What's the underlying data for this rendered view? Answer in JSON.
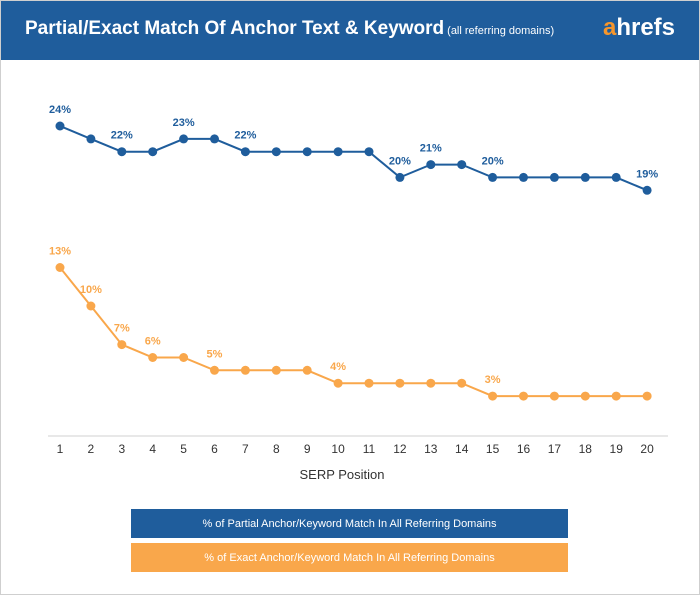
{
  "header": {
    "title": "Partial/Exact Match Of Anchor Text & Keyword",
    "subtitle": "(all referring domains)",
    "brand_a": "a",
    "brand_rest": "hrefs"
  },
  "colors": {
    "header_bg": "#1f5d9c",
    "partial": "#1f5d9c",
    "exact": "#f9a74b",
    "brand_accent": "#f7962b"
  },
  "chart_data": {
    "type": "line",
    "xlabel": "SERP Position",
    "ylabel": "",
    "grid": false,
    "legend_placement": "bottom",
    "x": [
      1,
      2,
      3,
      4,
      5,
      6,
      7,
      8,
      9,
      10,
      11,
      12,
      13,
      14,
      15,
      16,
      17,
      18,
      19,
      20
    ],
    "series": [
      {
        "name": "% of Partial Anchor/Keyword Match In All Referring Domains",
        "values": [
          24,
          23,
          22,
          22,
          23,
          23,
          22,
          22,
          22,
          22,
          22,
          20,
          21,
          21,
          20,
          20,
          20,
          20,
          20,
          19
        ],
        "labels": [
          "24%",
          "",
          "22%",
          "",
          "23%",
          "",
          "22%",
          "",
          "",
          "",
          "",
          "20%",
          "21%",
          "",
          "20%",
          "",
          "",
          "",
          "",
          "19%"
        ]
      },
      {
        "name": "% of Exact Anchor/Keyword Match In All Referring Domains",
        "values": [
          13,
          10,
          7,
          6,
          6,
          5,
          5,
          5,
          5,
          4,
          4,
          4,
          4,
          4,
          3,
          3,
          3,
          3,
          3,
          3
        ],
        "labels": [
          "13%",
          "10%",
          "7%",
          "6%",
          "",
          "5%",
          "",
          "",
          "",
          "4%",
          "",
          "",
          "",
          "",
          "3%",
          "",
          "",
          "",
          "",
          ""
        ]
      }
    ]
  }
}
